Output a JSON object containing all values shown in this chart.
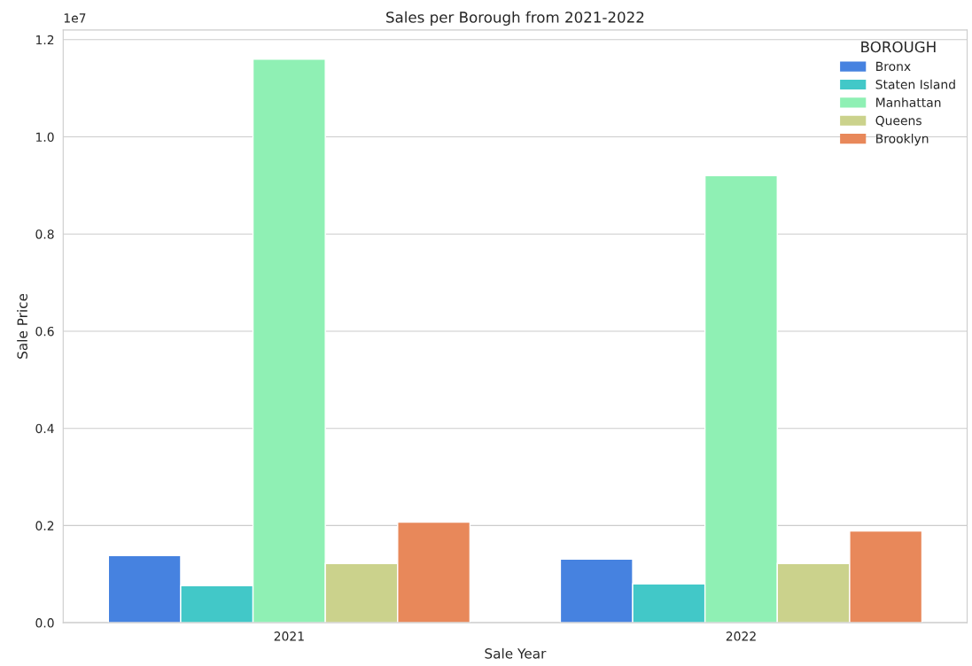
{
  "chart_data": {
    "type": "bar",
    "title": "Sales per Borough from 2021-2022",
    "xlabel": "Sale Year",
    "ylabel": "Sale Price",
    "legend_title": "BOROUGH",
    "categories": [
      "2021",
      "2022"
    ],
    "series": [
      {
        "name": "Bronx",
        "color": "#4682e0",
        "values": [
          0.138,
          0.131
        ]
      },
      {
        "name": "Staten Island",
        "color": "#42c8c8",
        "values": [
          0.076,
          0.08
        ]
      },
      {
        "name": "Manhattan",
        "color": "#8ff0b4",
        "values": [
          1.16,
          0.92
        ]
      },
      {
        "name": "Queens",
        "color": "#cbd28c",
        "values": [
          0.122,
          0.122
        ]
      },
      {
        "name": "Brooklyn",
        "color": "#e8885a",
        "values": [
          0.207,
          0.189
        ]
      }
    ],
    "ylim": [
      0,
      1.22
    ],
    "yticks": [
      {
        "value": 0,
        "label": "0.0"
      },
      0.2,
      0.4,
      0.6,
      0.8,
      {
        "value": 1.0,
        "label": "1.0"
      },
      1.2
    ],
    "annotations": [
      "1e7"
    ],
    "grid": "y",
    "legend": "top right"
  }
}
